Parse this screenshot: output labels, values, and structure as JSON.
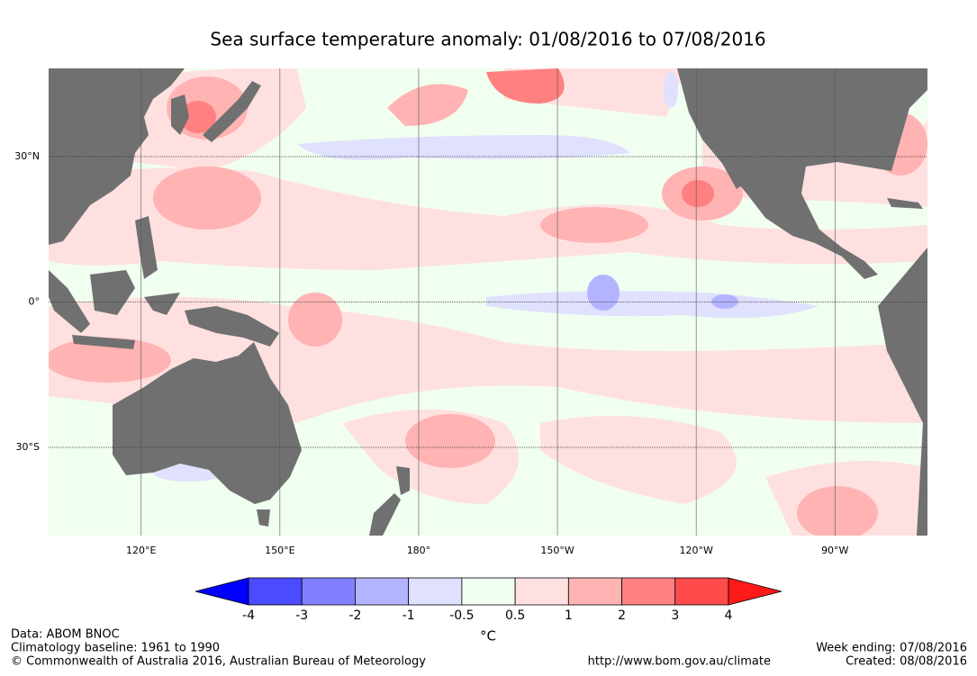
{
  "title": "Sea surface temperature anomaly: 01/08/2016 to 07/08/2016",
  "map": {
    "xlim": [
      100,
      290
    ],
    "ylim": [
      -48.2,
      48.2
    ],
    "lon_ticks": [
      {
        "value": 120,
        "label": "120°E"
      },
      {
        "value": 150,
        "label": "150°E"
      },
      {
        "value": 180,
        "label": "180°"
      },
      {
        "value": 210,
        "label": "150°W"
      },
      {
        "value": 240,
        "label": "120°W"
      },
      {
        "value": 270,
        "label": "90°W"
      }
    ],
    "lat_ticks": [
      {
        "value": 30,
        "label": "30°N"
      },
      {
        "value": 0,
        "label": "0°"
      },
      {
        "value": -30,
        "label": "30°S"
      }
    ],
    "grid": true
  },
  "colorbar": {
    "levels": [
      -4,
      -3,
      -2,
      -1,
      -0.5,
      0.5,
      1,
      2,
      3,
      4
    ],
    "colors": [
      "#0000ff",
      "#4b4bff",
      "#8080ff",
      "#b3b3ff",
      "#e0e0ff",
      "#f0fff0",
      "#ffe0e0",
      "#ffb3b3",
      "#ff8080",
      "#ff4b4b",
      "#ff1a1a"
    ],
    "unit": "°C"
  },
  "footer": {
    "left": [
      "Data: ABOM BNOC",
      "Climatology baseline: 1961 to 1990",
      "© Commonwealth of Australia 2016, Australian Bureau of Meteorology"
    ],
    "center": "http://www.bom.gov.au/climate",
    "right": [
      "Week ending: 07/08/2016",
      "Created: 08/08/2016"
    ]
  }
}
